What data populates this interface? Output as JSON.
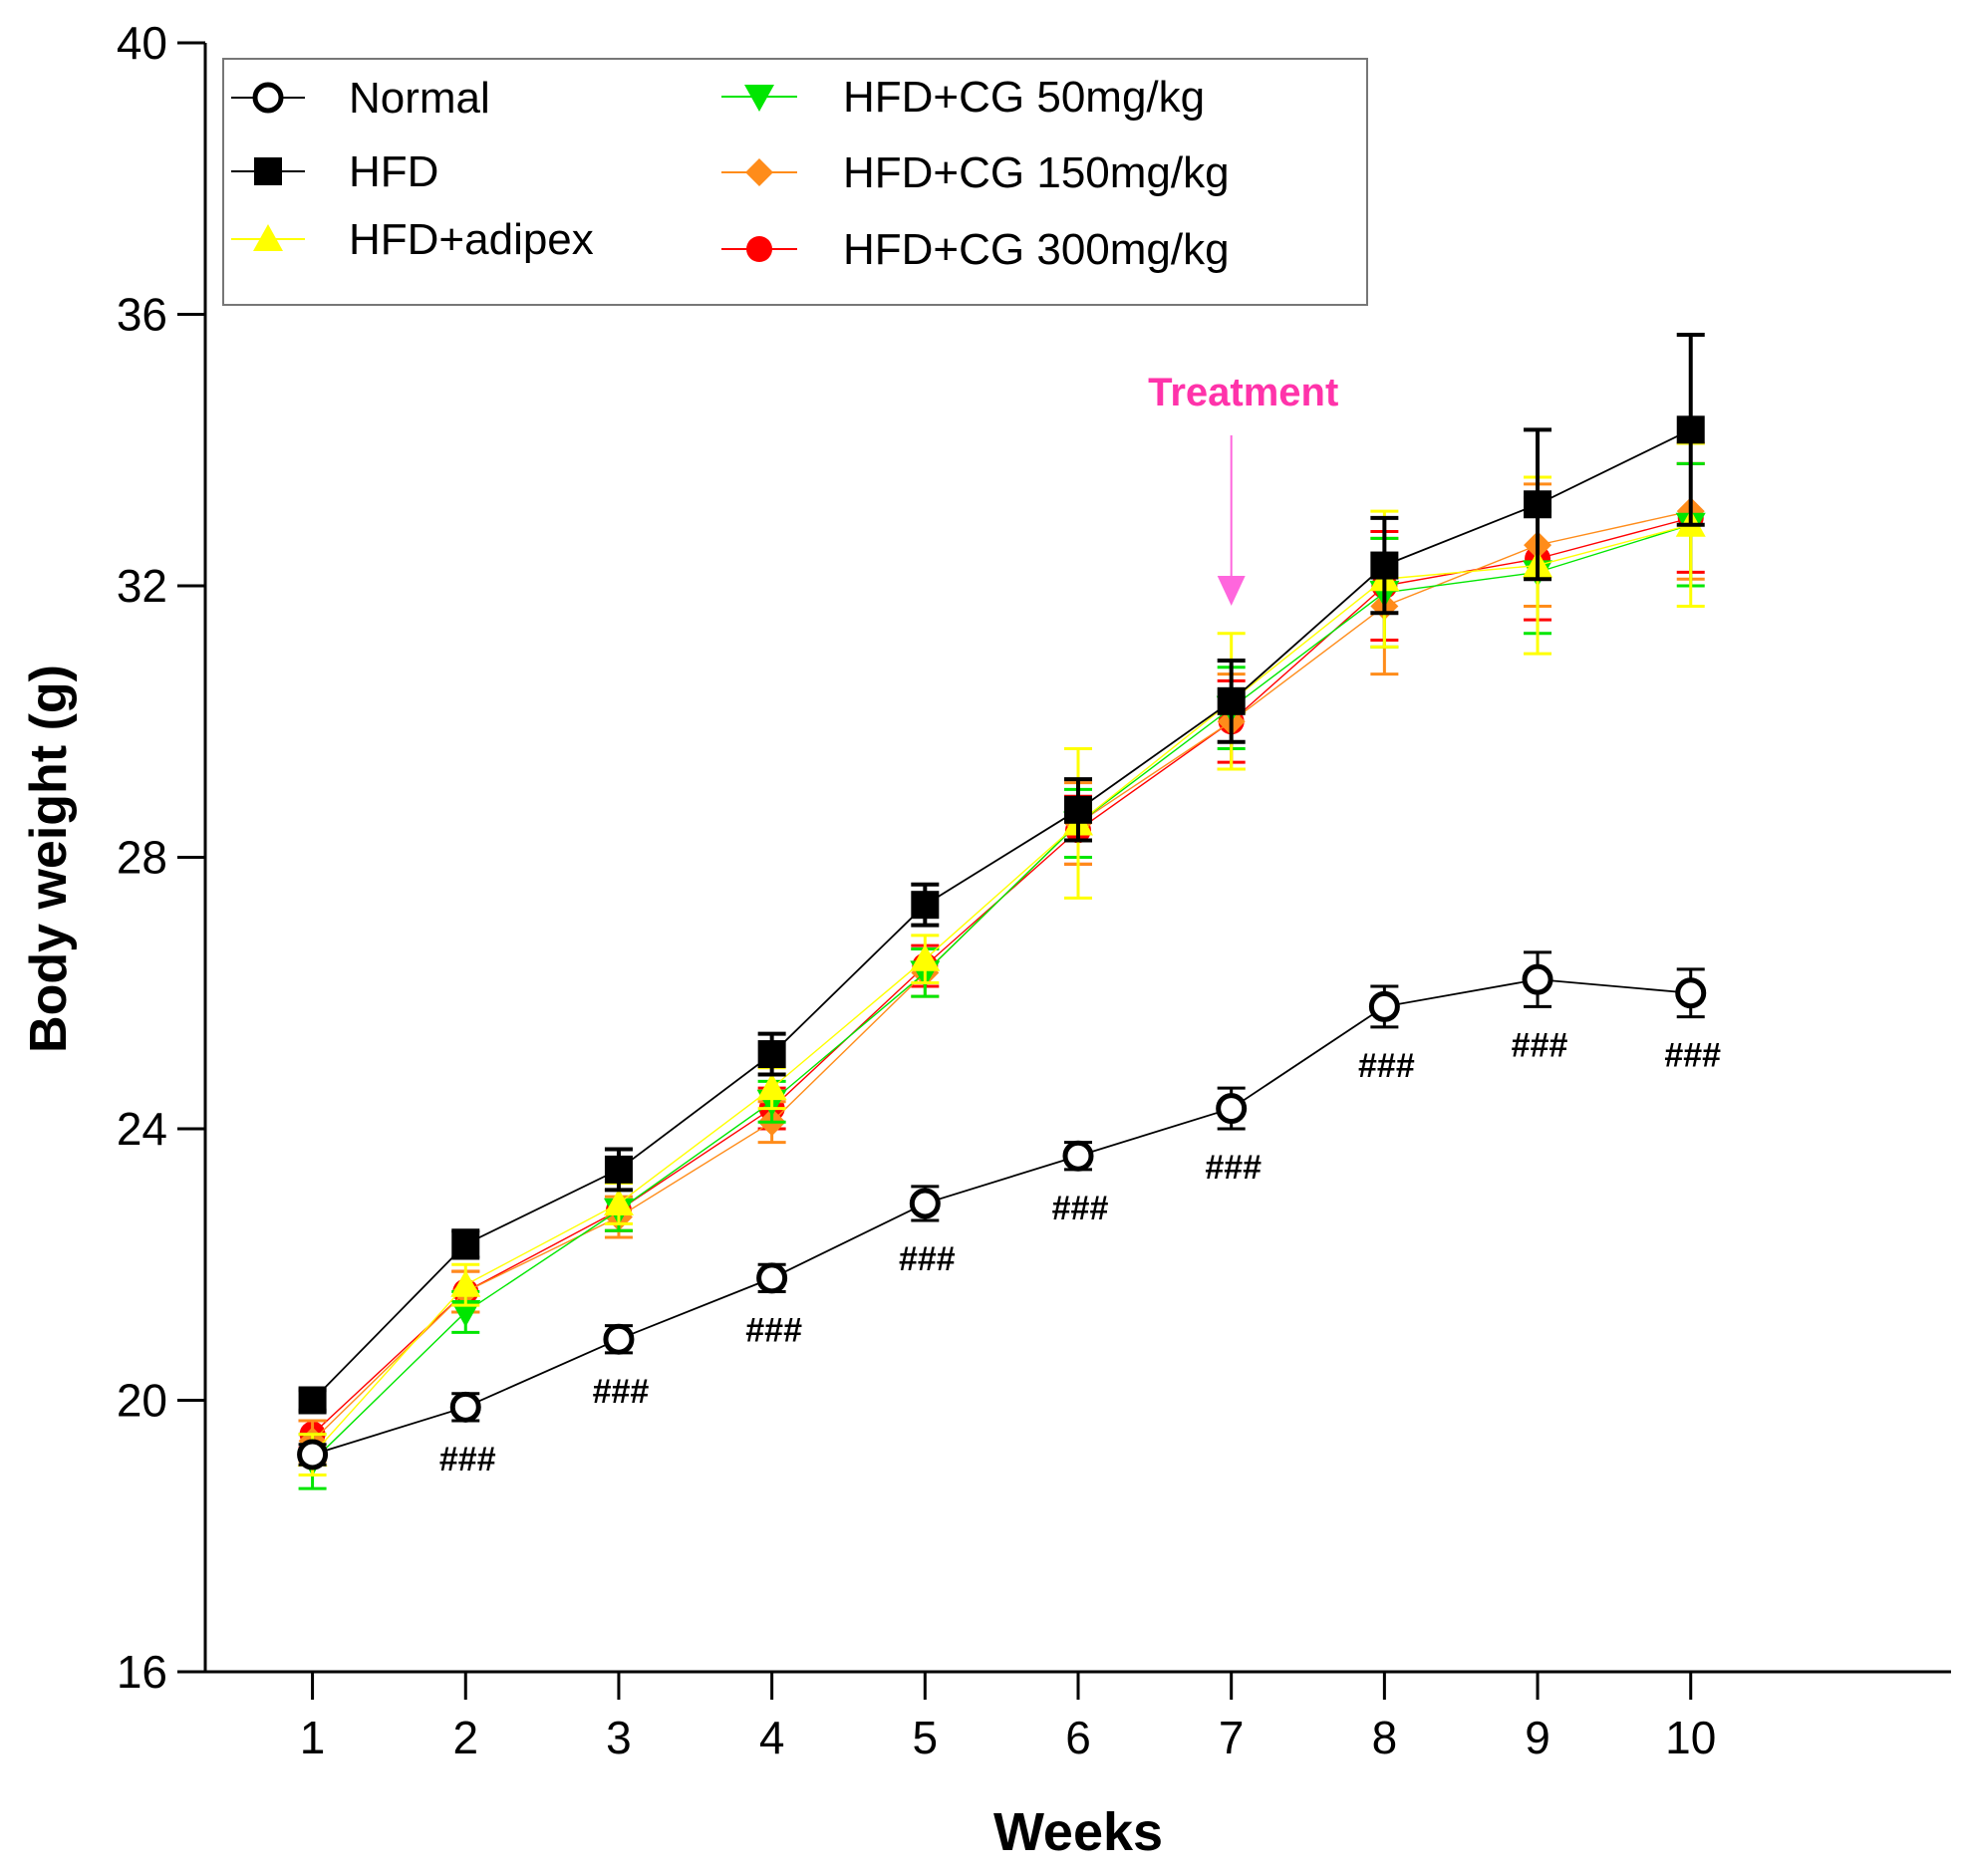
{
  "chart_data": {
    "type": "line",
    "xlabel": "Weeks",
    "ylabel": "Body weight (g)",
    "x": [
      1,
      2,
      3,
      4,
      5,
      6,
      7,
      8,
      9,
      10
    ],
    "xticks": [
      "1",
      "2",
      "3",
      "4",
      "5",
      "6",
      "7",
      "8",
      "9",
      "10"
    ],
    "yticks": [
      "16",
      "20",
      "24",
      "28",
      "32",
      "36",
      "40"
    ],
    "ylim": [
      16,
      40
    ],
    "xlim": [
      0.3,
      11.7
    ],
    "grid": false,
    "legend_position": "top-left",
    "series": [
      {
        "name": "Normal",
        "color": "#000000",
        "marker": "open-circle",
        "values": [
          19.2,
          19.9,
          20.9,
          21.8,
          22.9,
          23.6,
          24.3,
          25.8,
          26.2,
          26.0
        ],
        "errors": [
          0.15,
          0.2,
          0.2,
          0.2,
          0.25,
          0.2,
          0.3,
          0.3,
          0.4,
          0.35
        ]
      },
      {
        "name": "HFD",
        "color": "#000000",
        "marker": "filled-square",
        "values": [
          20.0,
          22.3,
          23.4,
          25.1,
          27.3,
          28.7,
          30.3,
          32.3,
          33.2,
          34.3
        ],
        "errors": [
          0.15,
          0.2,
          0.3,
          0.3,
          0.3,
          0.45,
          0.6,
          0.7,
          1.1,
          1.4
        ]
      },
      {
        "name": "HFD+adipex",
        "color": "#ffff00",
        "marker": "triangle-up",
        "values": [
          19.2,
          21.7,
          22.9,
          24.6,
          26.5,
          28.5,
          30.3,
          32.1,
          32.3,
          32.9
        ],
        "errors": [
          0.3,
          0.3,
          0.3,
          0.3,
          0.35,
          1.1,
          1.0,
          1.0,
          1.3,
          1.2
        ]
      },
      {
        "name": "HFD+CG 50mg/kg",
        "color": "#00e600",
        "marker": "triangle-down",
        "values": [
          19.1,
          21.3,
          22.8,
          24.4,
          26.3,
          28.5,
          30.2,
          31.9,
          32.2,
          32.9
        ],
        "errors": [
          0.4,
          0.3,
          0.3,
          0.3,
          0.35,
          0.5,
          0.6,
          0.8,
          0.9,
          0.9
        ]
      },
      {
        "name": "HFD+CG 150mg/kg",
        "color": "#ff8c1a",
        "marker": "diamond",
        "values": [
          19.4,
          21.6,
          22.7,
          24.1,
          26.3,
          28.5,
          30.0,
          31.7,
          32.6,
          33.1
        ],
        "errors": [
          0.3,
          0.3,
          0.3,
          0.3,
          0.35,
          0.6,
          0.7,
          1.0,
          0.9,
          1.0
        ]
      },
      {
        "name": "HFD+CG 300mg/kg",
        "color": "#ff0000",
        "marker": "filled-circle",
        "values": [
          19.5,
          21.6,
          22.8,
          24.3,
          26.4,
          28.4,
          30.0,
          32.0,
          32.4,
          33.0
        ],
        "errors": [
          0.2,
          0.3,
          0.3,
          0.3,
          0.3,
          0.5,
          0.6,
          0.8,
          0.9,
          0.8
        ]
      }
    ],
    "significance": {
      "label": "###",
      "weeks": [
        2,
        3,
        4,
        5,
        6,
        7,
        8,
        9,
        10
      ]
    },
    "annotation": {
      "text": "Treatment",
      "x": 7,
      "color": "#ff33aa",
      "arrow_color": "#ff66dd"
    }
  }
}
